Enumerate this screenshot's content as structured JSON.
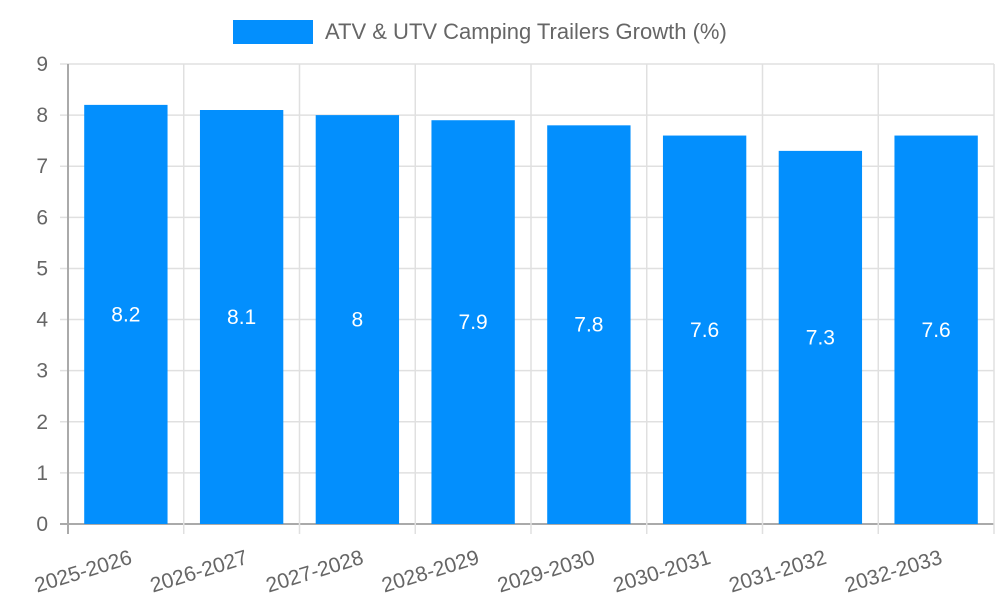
{
  "legend": {
    "label": "ATV & UTV Camping Trailers Growth (%)",
    "color": "#038ffd"
  },
  "chart_data": {
    "type": "bar",
    "title": "",
    "categories": [
      "2025-2026",
      "2026-2027",
      "2027-2028",
      "2028-2029",
      "2029-2030",
      "2030-2031",
      "2031-2032",
      "2032-2033"
    ],
    "series": [
      {
        "name": "ATV & UTV Camping Trailers Growth (%)",
        "values": [
          8.2,
          8.1,
          8,
          7.9,
          7.8,
          7.6,
          7.3,
          7.6
        ],
        "color": "#038ffd"
      }
    ],
    "data_labels": [
      "8.2",
      "8.1",
      "8",
      "7.9",
      "7.8",
      "7.6",
      "7.3",
      "7.6"
    ],
    "xlabel": "",
    "ylabel": "",
    "ylim": [
      0,
      9
    ],
    "yticks": [
      0,
      1,
      2,
      3,
      4,
      5,
      6,
      7,
      8,
      9
    ],
    "grid": true,
    "legend_position": "top"
  }
}
